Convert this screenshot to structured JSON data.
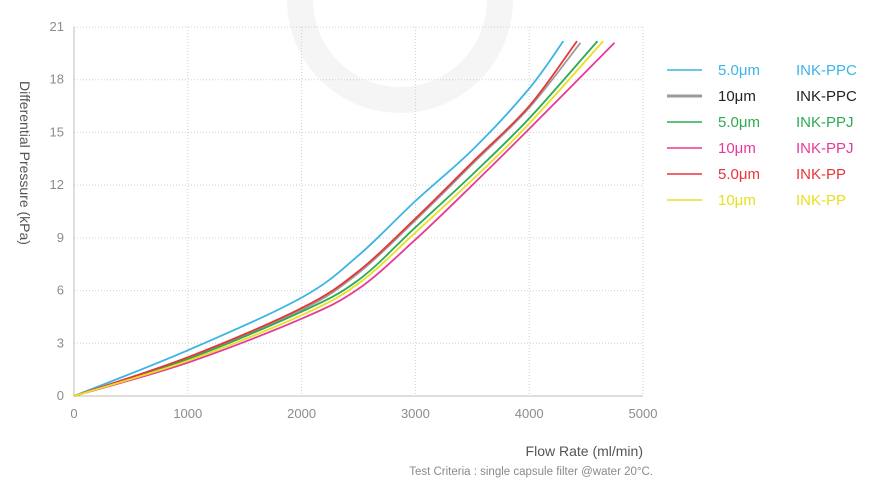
{
  "chart_data": {
    "type": "line",
    "xlabel": "Flow Rate (ml/min)",
    "ylabel": "Differential Pressure (kPa)",
    "footnote": "Test Criteria : single capsule filter @water 20°C.",
    "xlim": [
      0,
      5000
    ],
    "ylim": [
      0,
      21
    ],
    "xticks": [
      0,
      1000,
      2000,
      3000,
      4000,
      5000
    ],
    "yticks": [
      0,
      3,
      6,
      9,
      12,
      15,
      18,
      21
    ],
    "grid": true,
    "legend_position": "right",
    "series": [
      {
        "size": "5.0μm",
        "name": "INK-PPC",
        "color": "#3bb4e6",
        "legend_text_color": "#3bb4e6",
        "x": [
          0,
          1000,
          2000,
          2500,
          3000,
          3500,
          4000,
          4300
        ],
        "y": [
          0,
          2.6,
          5.6,
          8.0,
          11.1,
          14.0,
          17.5,
          20.2
        ]
      },
      {
        "size": "10μm",
        "name": "INK-PPC",
        "color": "#9b9b9b",
        "legend_text_color": "#222222",
        "x": [
          0,
          1000,
          2000,
          2500,
          3000,
          3500,
          4000,
          4450
        ],
        "y": [
          0,
          2.2,
          4.9,
          7.0,
          10.0,
          13.2,
          16.4,
          20.1
        ]
      },
      {
        "size": "5.0μm",
        "name": "INK-PPJ",
        "color": "#2eaa55",
        "legend_text_color": "#2eaa55",
        "x": [
          0,
          1000,
          2000,
          2500,
          3000,
          3500,
          4000,
          4600
        ],
        "y": [
          0,
          2.1,
          4.8,
          6.6,
          9.6,
          12.6,
          15.8,
          20.2
        ]
      },
      {
        "size": "10μm",
        "name": "INK-PPJ",
        "color": "#e8399a",
        "legend_text_color": "#e8399a",
        "x": [
          0,
          1000,
          2000,
          2500,
          3000,
          3500,
          4000,
          4750
        ],
        "y": [
          0,
          1.9,
          4.4,
          6.1,
          8.9,
          12.0,
          15.2,
          20.1
        ]
      },
      {
        "size": "5.0μm",
        "name": "INK-PP",
        "color": "#e8353a",
        "legend_text_color": "#e8353a",
        "x": [
          0,
          1000,
          2000,
          2500,
          3000,
          3500,
          4000,
          4420
        ],
        "y": [
          0,
          2.2,
          5.0,
          7.1,
          10.1,
          13.3,
          16.5,
          20.2
        ]
      },
      {
        "size": "10μm",
        "name": "INK-PP",
        "color": "#e8e020",
        "legend_text_color": "#e8e020",
        "x": [
          0,
          1000,
          2000,
          2500,
          3000,
          3500,
          4000,
          4650
        ],
        "y": [
          0,
          2.0,
          4.6,
          6.4,
          9.3,
          12.3,
          15.5,
          20.2
        ]
      }
    ]
  }
}
